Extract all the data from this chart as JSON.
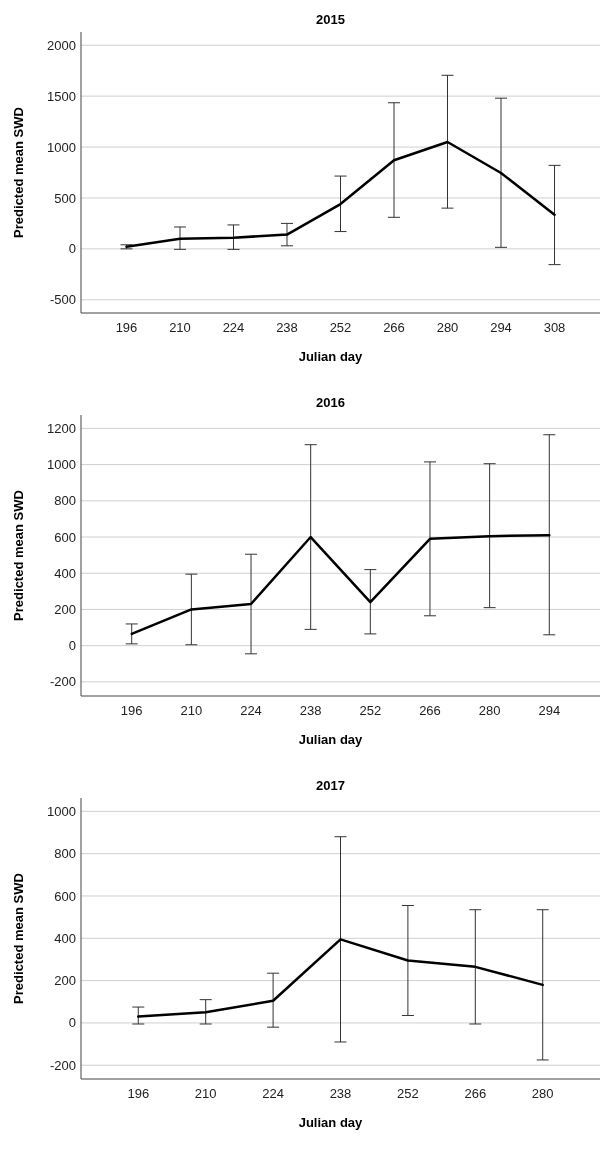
{
  "chart_data": [
    {
      "type": "line",
      "title": "2015",
      "xlabel": "Julian day",
      "ylabel": "Predicted mean SWD",
      "categories": [
        "196",
        "210",
        "224",
        "238",
        "252",
        "266",
        "280",
        "294",
        "308"
      ],
      "grid": "y",
      "marker": "none",
      "line_style": "solid",
      "ylim": [
        -630,
        2130
      ],
      "yticks": [
        -500,
        0,
        500,
        1000,
        1500,
        2000
      ],
      "series": [
        {
          "color": "#000000",
          "values": [
            20,
            100,
            110,
            140,
            440,
            870,
            1050,
            745,
            335
          ],
          "errors": [
            [
              0,
              40
            ],
            [
              -5,
              215
            ],
            [
              -5,
              235
            ],
            [
              30,
              250
            ],
            [
              170,
              715
            ],
            [
              310,
              1435
            ],
            [
              400,
              1705
            ],
            [
              15,
              1480
            ],
            [
              -155,
              820
            ]
          ]
        }
      ]
    },
    {
      "type": "line",
      "title": "2016",
      "xlabel": "Julian day",
      "ylabel": "Predicted mean SWD",
      "categories": [
        "196",
        "210",
        "224",
        "238",
        "252",
        "266",
        "280",
        "294"
      ],
      "grid": "y",
      "marker": "none",
      "line_style": "solid",
      "ylim": [
        -278,
        1274
      ],
      "yticks": [
        -200,
        0,
        200,
        400,
        600,
        800,
        1000,
        1200
      ],
      "series": [
        {
          "color": "#000000",
          "values": [
            65,
            200,
            230,
            600,
            240,
            590,
            605,
            610
          ],
          "errors": [
            [
              10,
              120
            ],
            [
              5,
              395
            ],
            [
              -45,
              505
            ],
            [
              90,
              1110
            ],
            [
              65,
              420
            ],
            [
              165,
              1015
            ],
            [
              210,
              1005
            ],
            [
              60,
              1165
            ]
          ]
        }
      ]
    },
    {
      "type": "line",
      "title": "2017",
      "xlabel": "Julian day",
      "ylabel": "Predicted mean SWD",
      "categories": [
        "196",
        "210",
        "224",
        "238",
        "252",
        "266",
        "280"
      ],
      "grid": "y",
      "marker": "none",
      "line_style": "solid",
      "ylim": [
        -265,
        1063
      ],
      "yticks": [
        -200,
        0,
        200,
        400,
        600,
        800,
        1000
      ],
      "series": [
        {
          "color": "#000000",
          "values": [
            30,
            50,
            105,
            395,
            295,
            265,
            180
          ],
          "errors": [
            [
              -5,
              75
            ],
            [
              -5,
              110
            ],
            [
              -20,
              235
            ],
            [
              -90,
              880
            ],
            [
              35,
              555
            ],
            [
              -5,
              535
            ],
            [
              -175,
              535
            ]
          ]
        }
      ]
    }
  ]
}
